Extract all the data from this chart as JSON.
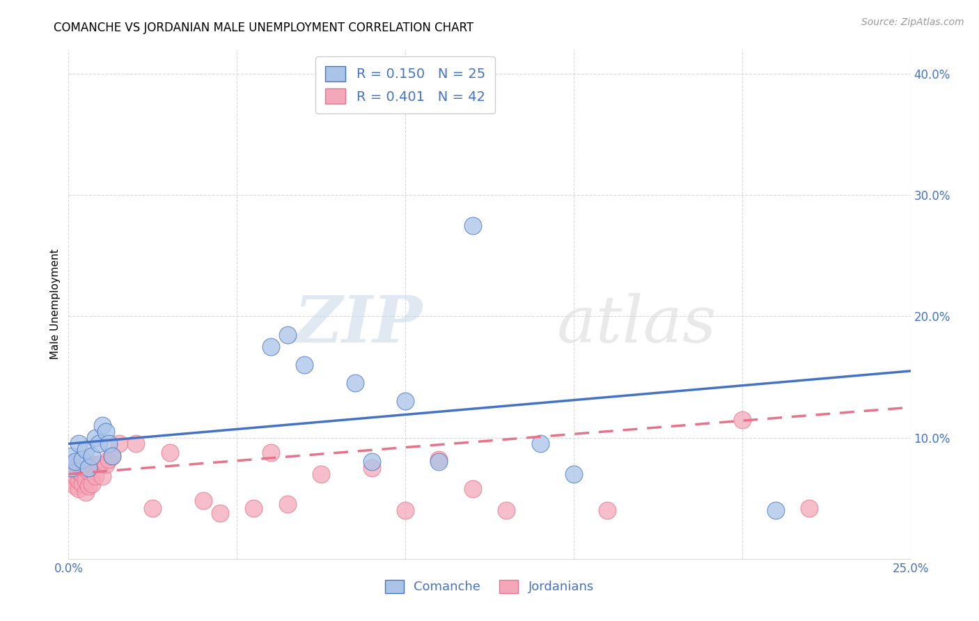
{
  "title": "COMANCHE VS JORDANIAN MALE UNEMPLOYMENT CORRELATION CHART",
  "source": "Source: ZipAtlas.com",
  "ylabel": "Male Unemployment",
  "xlim": [
    0.0,
    0.25
  ],
  "ylim": [
    0.0,
    0.42
  ],
  "comanche_x": [
    0.001,
    0.001,
    0.002,
    0.003,
    0.004,
    0.005,
    0.006,
    0.007,
    0.008,
    0.009,
    0.01,
    0.011,
    0.012,
    0.013,
    0.06,
    0.065,
    0.07,
    0.085,
    0.09,
    0.1,
    0.11,
    0.12,
    0.14,
    0.15,
    0.21
  ],
  "comanche_y": [
    0.075,
    0.085,
    0.08,
    0.095,
    0.082,
    0.09,
    0.075,
    0.085,
    0.1,
    0.095,
    0.11,
    0.105,
    0.095,
    0.085,
    0.175,
    0.185,
    0.16,
    0.145,
    0.08,
    0.13,
    0.08,
    0.275,
    0.095,
    0.07,
    0.04
  ],
  "jordanian_x": [
    0.001,
    0.001,
    0.001,
    0.002,
    0.002,
    0.002,
    0.003,
    0.003,
    0.003,
    0.004,
    0.004,
    0.005,
    0.005,
    0.005,
    0.006,
    0.006,
    0.007,
    0.007,
    0.008,
    0.009,
    0.01,
    0.011,
    0.012,
    0.013,
    0.015,
    0.02,
    0.025,
    0.03,
    0.04,
    0.045,
    0.055,
    0.06,
    0.065,
    0.075,
    0.09,
    0.1,
    0.11,
    0.12,
    0.13,
    0.16,
    0.2,
    0.22
  ],
  "jordanian_y": [
    0.065,
    0.072,
    0.078,
    0.06,
    0.068,
    0.075,
    0.058,
    0.065,
    0.072,
    0.062,
    0.07,
    0.055,
    0.065,
    0.075,
    0.06,
    0.072,
    0.062,
    0.078,
    0.068,
    0.078,
    0.068,
    0.078,
    0.082,
    0.085,
    0.095,
    0.095,
    0.042,
    0.088,
    0.048,
    0.038,
    0.042,
    0.088,
    0.045,
    0.07,
    0.075,
    0.04,
    0.082,
    0.058,
    0.04,
    0.04,
    0.115,
    0.042
  ],
  "comanche_color": "#aac4e8",
  "jordanian_color": "#f4a7b9",
  "comanche_line_color": "#4472c4",
  "jordanian_line_color": "#e8728a",
  "comanche_R": 0.15,
  "comanche_N": 25,
  "jordanian_R": 0.401,
  "jordanian_N": 42,
  "watermark_zip": "ZIP",
  "watermark_atlas": "atlas",
  "legend_label_comanche": "Comanche",
  "legend_label_jordanian": "Jordanians",
  "background_color": "#ffffff",
  "grid_color": "#d8d8d8",
  "com_line_y0": 0.095,
  "com_line_y1": 0.155,
  "jor_line_y0": 0.07,
  "jor_line_y1": 0.125
}
